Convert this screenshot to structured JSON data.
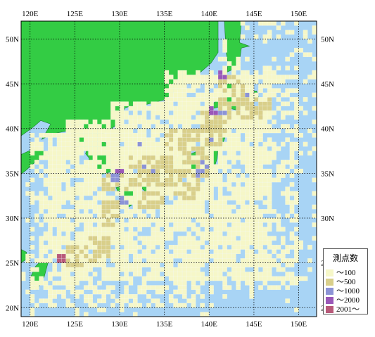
{
  "map": {
    "lon_min": 119,
    "lon_max": 152,
    "lat_min": 19,
    "lat_max": 52,
    "lon_ticks": [
      120,
      125,
      130,
      135,
      140,
      145,
      150
    ],
    "lat_ticks": [
      20,
      25,
      30,
      35,
      40,
      45,
      50
    ],
    "lon_labels": [
      "120E",
      "125E",
      "130E",
      "135E",
      "140E",
      "145E",
      "150E"
    ],
    "lat_labels": [
      "20N",
      "25N",
      "30N",
      "35N",
      "40N",
      "45N",
      "50N"
    ],
    "grid": true,
    "grid_style": "dotted",
    "colors": {
      "sea": "#a8d4f5",
      "land": "#33cc44",
      "coast": "#1a7a2a",
      "grid": "#000000"
    }
  },
  "legend": {
    "title": "測点数",
    "items": [
      {
        "label": "～100",
        "color": "#f6f7c8"
      },
      {
        "label": "～500",
        "color": "#d9cf8a"
      },
      {
        "label": "～1000",
        "color": "#8c93d6"
      },
      {
        "label": "～2000",
        "color": "#9a58b8"
      },
      {
        "label": "2001～",
        "color": "#b85a7a"
      }
    ]
  }
}
